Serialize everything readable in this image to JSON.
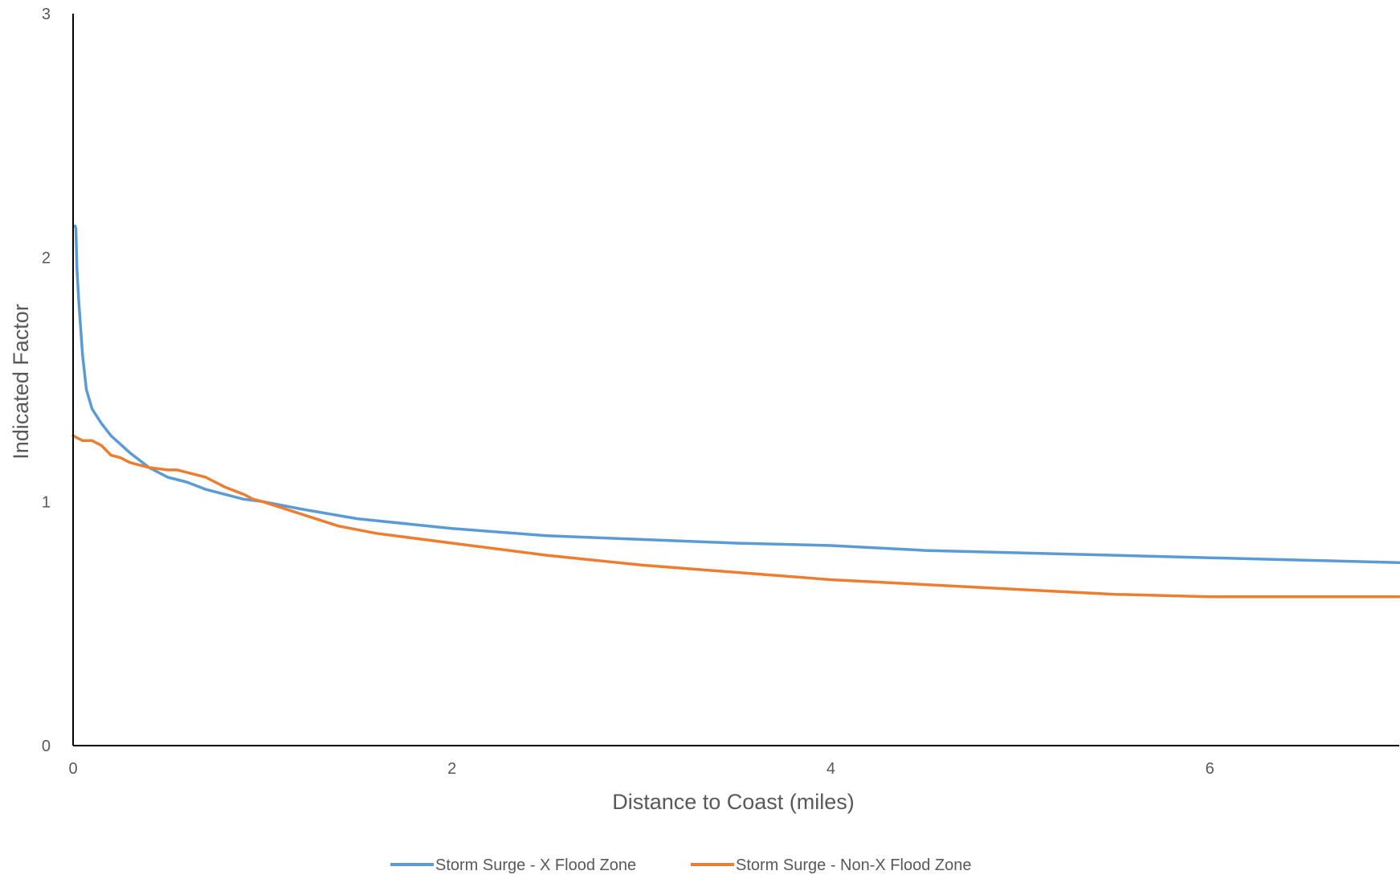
{
  "chart_data": {
    "type": "line",
    "title": "",
    "xlabel": "Distance to Coast (miles)",
    "ylabel": "Indicated Factor",
    "xlim": [
      0,
      7
    ],
    "ylim": [
      0,
      3
    ],
    "x_ticks": [
      0,
      2,
      4,
      6
    ],
    "y_ticks": [
      0,
      1,
      2,
      3
    ],
    "x_tick_labels": [
      "0",
      "2",
      "4",
      "6"
    ],
    "y_tick_labels": [
      "0",
      "1",
      "2",
      "3"
    ],
    "grid": false,
    "legend_position": "bottom",
    "series": [
      {
        "name": "Storm Surge - X Flood Zone",
        "color": "#5B9BD5",
        "x": [
          0.01,
          0.015,
          0.02,
          0.03,
          0.05,
          0.07,
          0.1,
          0.15,
          0.2,
          0.3,
          0.4,
          0.5,
          0.6,
          0.7,
          0.8,
          0.9,
          1.0,
          1.2,
          1.5,
          2.0,
          2.5,
          3.0,
          3.5,
          4.0,
          4.5,
          5.0,
          5.5,
          6.0,
          6.5,
          7.0
        ],
        "y": [
          2.13,
          2.12,
          1.96,
          1.82,
          1.6,
          1.46,
          1.38,
          1.32,
          1.27,
          1.2,
          1.14,
          1.1,
          1.08,
          1.05,
          1.03,
          1.01,
          1.0,
          0.97,
          0.93,
          0.89,
          0.86,
          0.845,
          0.83,
          0.82,
          0.8,
          0.79,
          0.78,
          0.77,
          0.76,
          0.75
        ]
      },
      {
        "name": "Storm Surge - Non-X Flood Zone",
        "color": "#ED7D31",
        "x": [
          0.0,
          0.05,
          0.1,
          0.15,
          0.2,
          0.25,
          0.3,
          0.35,
          0.4,
          0.5,
          0.55,
          0.6,
          0.7,
          0.8,
          0.9,
          0.95,
          1.0,
          1.2,
          1.4,
          1.6,
          2.0,
          2.5,
          3.0,
          3.5,
          4.0,
          4.5,
          5.0,
          5.5,
          6.0,
          6.5,
          7.0
        ],
        "y": [
          1.27,
          1.25,
          1.25,
          1.23,
          1.19,
          1.18,
          1.16,
          1.15,
          1.14,
          1.13,
          1.13,
          1.12,
          1.1,
          1.06,
          1.03,
          1.01,
          1.0,
          0.95,
          0.9,
          0.87,
          0.83,
          0.78,
          0.74,
          0.71,
          0.68,
          0.66,
          0.64,
          0.62,
          0.61,
          0.61,
          0.61
        ]
      }
    ]
  }
}
